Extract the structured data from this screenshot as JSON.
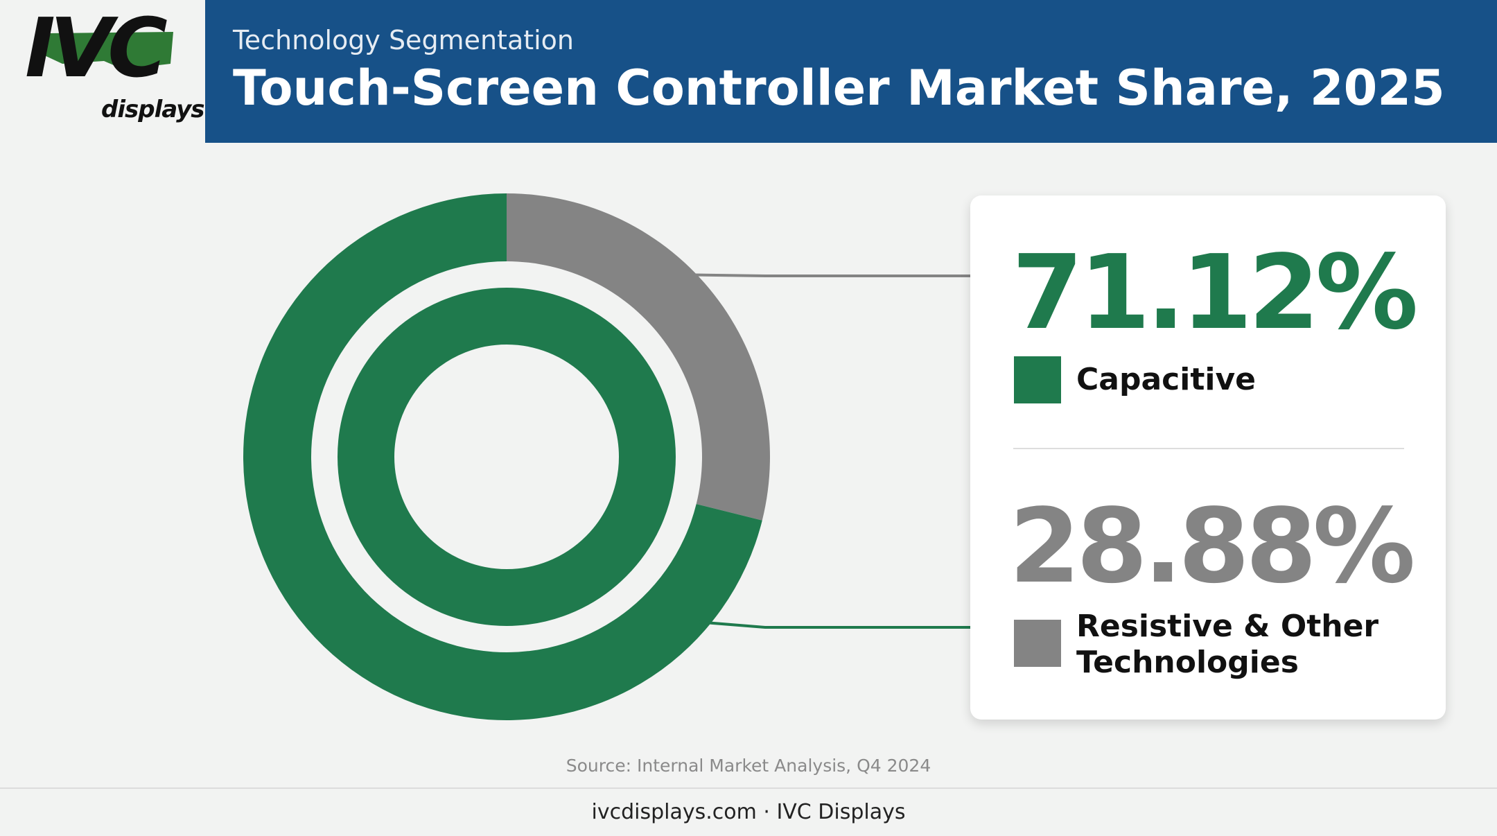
{
  "logo": {
    "brand": "IVC",
    "sub": "displays"
  },
  "header": {
    "subtitle": "Technology Segmentation",
    "title": "Touch-Screen Controller Market Share, 2025"
  },
  "colors": {
    "capacitive": "#1f7a4d",
    "other": "#848484",
    "header_bg": "#175188"
  },
  "chart_data": {
    "type": "pie",
    "title": "Touch-Screen Controller Market Share, 2025",
    "categories": [
      "Capacitive",
      "Resistive & Other Technologies"
    ],
    "values": [
      71.12,
      28.88
    ],
    "labels": [
      "71.12%",
      "28.88%"
    ],
    "inner_ring": {
      "categories": [
        "Capacitive"
      ],
      "values": [
        100
      ]
    }
  },
  "legend": [
    {
      "pct": "71.12%",
      "label": "Capacitive"
    },
    {
      "pct": "28.88%",
      "label": "Resistive & Other Technologies"
    }
  ],
  "source": "Source: Internal Market Analysis, Q4 2024",
  "footer": "ivcdisplays.com · IVC Displays"
}
